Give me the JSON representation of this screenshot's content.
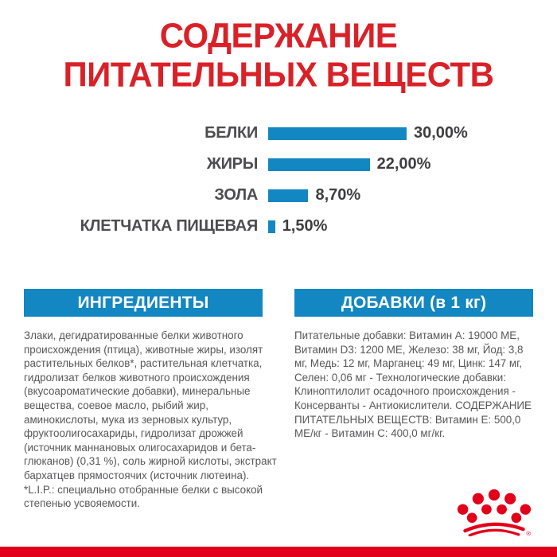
{
  "title": "СОДЕРЖАНИЕ ПИТАТЕЛЬНЫХ ВЕЩЕСТВ",
  "colors": {
    "title_red": "#da2128",
    "brand_red": "#e2001a",
    "accent_blue": "#1287c2",
    "label_gray": "#4d4d50",
    "value_gray": "#3e3e40",
    "text_gray": "#57575a"
  },
  "chart_data": {
    "type": "bar",
    "orientation": "horizontal",
    "title": "СОДЕРЖАНИЕ ПИТАТЕЛЬНЫХ ВЕЩЕСТВ",
    "categories": [
      "БЕЛКИ",
      "ЖИРЫ",
      "ЗОЛА",
      "КЛЕТЧАТКА ПИЩЕВАЯ"
    ],
    "values": [
      30.0,
      22.0,
      8.7,
      1.5
    ],
    "value_labels": [
      "30,00%",
      "22,00%",
      "8,70%",
      "1,50%"
    ],
    "xlim": [
      0,
      30
    ],
    "grid": false,
    "legend": false,
    "bar_color": "#1287c2"
  },
  "sections": {
    "ingredients": {
      "header": "ИНГРЕДИЕНТЫ",
      "body": "Злаки, дегидратированные белки животного происхождения (птица), животные жиры, изолят растительных белков*, растительная клетчатка, гидролизат белков животного происхождения (вкусоароматические добавки), минеральные вещества, соевое масло, рыбий жир, аминокислоты, мука из зерновых культур, фруктоолигосахариды, гидролизат дрожжей (источник маннановых олигосахаридов и бета-глюканов) (0,31 %), соль жирной кислоты, экстракт бархатцев прямостоячих (источник лютеина).",
      "footnote": "*L.I.P.: специально отобранные белки с высокой степенью усвояемости."
    },
    "additives": {
      "header": "ДОБАВКИ (в 1 кг)",
      "body": "Питательные добавки: Витамин А: 19000 МЕ, Витамин D3: 1200 МЕ, Железо: 38 мг, Йод: 3,8 мг, Медь: 12 мг, Марганец: 49 мг, Цинк: 147 мг, Селен: 0,06 мг - Технологические добавки: Клиноптилолит осадочного происхождения - Консерванты - Антиокислители. СОДЕРЖАНИЕ ПИТАТЕЛЬНЫХ ВЕЩЕСТВ: Витамин Е: 500,0 МЕ/кг - Витамин С: 400,0 мг/кг."
    }
  },
  "logo": {
    "name": "royal-canin-crown",
    "registered_mark": "®"
  }
}
